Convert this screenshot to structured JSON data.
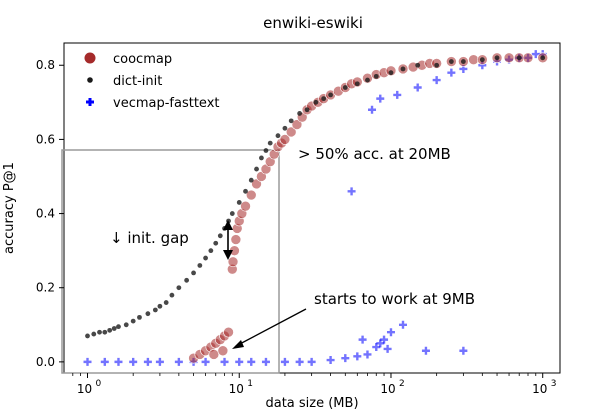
{
  "chart_data": {
    "type": "scatter",
    "title": "enwiki-eswiki",
    "xlabel": "data size (MB)",
    "ylabel": "accuracy P@1",
    "xscale": "log",
    "xlim": [
      0.7,
      1300
    ],
    "ylim": [
      -0.03,
      0.86
    ],
    "xticks": [
      {
        "value": 1,
        "label": "10",
        "exp": "0"
      },
      {
        "value": 10,
        "label": "10",
        "exp": "1"
      },
      {
        "value": 100,
        "label": "10",
        "exp": "2"
      },
      {
        "value": 1000,
        "label": "10",
        "exp": "3"
      }
    ],
    "yticks": [
      {
        "value": 0.0,
        "label": "0.0"
      },
      {
        "value": 0.2,
        "label": "0.2"
      },
      {
        "value": 0.4,
        "label": "0.4"
      },
      {
        "value": 0.6,
        "label": "0.6"
      },
      {
        "value": 0.8,
        "label": "0.8"
      }
    ],
    "legend_position": "top-left",
    "series": [
      {
        "name": "coocmap",
        "color": "#a52a2a",
        "marker": "circle",
        "points": [
          [
            5.0,
            0.01
          ],
          [
            5.5,
            0.02
          ],
          [
            6.0,
            0.03
          ],
          [
            6.5,
            0.04
          ],
          [
            7.0,
            0.05
          ],
          [
            7.5,
            0.06
          ],
          [
            8.0,
            0.07
          ],
          [
            8.5,
            0.08
          ],
          [
            6.8,
            0.02
          ],
          [
            7.8,
            0.03
          ],
          [
            9.0,
            0.25
          ],
          [
            9.1,
            0.27
          ],
          [
            9.3,
            0.3
          ],
          [
            9.5,
            0.33
          ],
          [
            9.7,
            0.36
          ],
          [
            10.0,
            0.38
          ],
          [
            10.4,
            0.4
          ],
          [
            11,
            0.42
          ],
          [
            12,
            0.45
          ],
          [
            13,
            0.48
          ],
          [
            14,
            0.5
          ],
          [
            15,
            0.52
          ],
          [
            16,
            0.54
          ],
          [
            17,
            0.56
          ],
          [
            18,
            0.58
          ],
          [
            19,
            0.59
          ],
          [
            20,
            0.6
          ],
          [
            22,
            0.62
          ],
          [
            24,
            0.64
          ],
          [
            26,
            0.66
          ],
          [
            28,
            0.68
          ],
          [
            30,
            0.69
          ],
          [
            33,
            0.7
          ],
          [
            36,
            0.71
          ],
          [
            40,
            0.72
          ],
          [
            45,
            0.73
          ],
          [
            50,
            0.74
          ],
          [
            55,
            0.75
          ],
          [
            60,
            0.755
          ],
          [
            70,
            0.765
          ],
          [
            80,
            0.775
          ],
          [
            90,
            0.78
          ],
          [
            100,
            0.785
          ],
          [
            120,
            0.79
          ],
          [
            140,
            0.795
          ],
          [
            160,
            0.8
          ],
          [
            180,
            0.805
          ],
          [
            200,
            0.805
          ],
          [
            250,
            0.81
          ],
          [
            300,
            0.81
          ],
          [
            350,
            0.815
          ],
          [
            400,
            0.815
          ],
          [
            500,
            0.82
          ],
          [
            600,
            0.82
          ],
          [
            700,
            0.82
          ],
          [
            800,
            0.82
          ],
          [
            1000,
            0.82
          ]
        ]
      },
      {
        "name": "dict-init",
        "color": "#1a1a1a",
        "marker": "dot",
        "points": [
          [
            1.0,
            0.07
          ],
          [
            1.1,
            0.075
          ],
          [
            1.2,
            0.08
          ],
          [
            1.3,
            0.08
          ],
          [
            1.4,
            0.085
          ],
          [
            1.5,
            0.09
          ],
          [
            1.6,
            0.095
          ],
          [
            1.8,
            0.1
          ],
          [
            2.0,
            0.11
          ],
          [
            2.2,
            0.12
          ],
          [
            2.5,
            0.13
          ],
          [
            2.8,
            0.14
          ],
          [
            3.0,
            0.15
          ],
          [
            3.3,
            0.16
          ],
          [
            3.6,
            0.18
          ],
          [
            4.0,
            0.2
          ],
          [
            4.5,
            0.22
          ],
          [
            5.0,
            0.24
          ],
          [
            5.5,
            0.26
          ],
          [
            6.0,
            0.28
          ],
          [
            6.5,
            0.3
          ],
          [
            7.0,
            0.32
          ],
          [
            7.5,
            0.34
          ],
          [
            8.0,
            0.36
          ],
          [
            8.5,
            0.38
          ],
          [
            9.0,
            0.4
          ],
          [
            10,
            0.43
          ],
          [
            11,
            0.46
          ],
          [
            12,
            0.49
          ],
          [
            13,
            0.52
          ],
          [
            14,
            0.55
          ],
          [
            15,
            0.57
          ],
          [
            16,
            0.59
          ],
          [
            18,
            0.61
          ],
          [
            20,
            0.63
          ],
          [
            22,
            0.65
          ],
          [
            25,
            0.67
          ],
          [
            28,
            0.68
          ],
          [
            32,
            0.7
          ],
          [
            36,
            0.71
          ],
          [
            40,
            0.72
          ],
          [
            50,
            0.74
          ],
          [
            60,
            0.75
          ],
          [
            70,
            0.76
          ],
          [
            80,
            0.77
          ],
          [
            100,
            0.78
          ],
          [
            120,
            0.79
          ],
          [
            150,
            0.8
          ],
          [
            200,
            0.8
          ],
          [
            250,
            0.81
          ],
          [
            300,
            0.81
          ],
          [
            400,
            0.815
          ],
          [
            500,
            0.82
          ],
          [
            700,
            0.82
          ],
          [
            1000,
            0.82
          ]
        ]
      },
      {
        "name": "vecmap-fasttext",
        "color": "#0000ff",
        "marker": "plus",
        "points": [
          [
            1.0,
            0.0
          ],
          [
            1.3,
            0.0
          ],
          [
            1.6,
            0.0
          ],
          [
            2.0,
            0.0
          ],
          [
            2.5,
            0.0
          ],
          [
            3.0,
            0.0
          ],
          [
            4.0,
            0.0
          ],
          [
            5.0,
            0.0
          ],
          [
            6.0,
            0.0
          ],
          [
            8.0,
            0.0
          ],
          [
            10,
            0.0
          ],
          [
            12,
            0.0
          ],
          [
            15,
            0.0
          ],
          [
            20,
            0.0
          ],
          [
            25,
            0.0
          ],
          [
            30,
            0.0
          ],
          [
            40,
            0.005
          ],
          [
            50,
            0.01
          ],
          [
            60,
            0.015
          ],
          [
            70,
            0.02
          ],
          [
            80,
            0.04
          ],
          [
            90,
            0.06
          ],
          [
            100,
            0.08
          ],
          [
            55,
            0.46
          ],
          [
            75,
            0.68
          ],
          [
            85,
            0.71
          ],
          [
            110,
            0.72
          ],
          [
            150,
            0.74
          ],
          [
            200,
            0.76
          ],
          [
            250,
            0.78
          ],
          [
            300,
            0.79
          ],
          [
            400,
            0.8
          ],
          [
            500,
            0.81
          ],
          [
            600,
            0.815
          ],
          [
            700,
            0.82
          ],
          [
            800,
            0.82
          ],
          [
            900,
            0.83
          ],
          [
            1000,
            0.83
          ],
          [
            170,
            0.03
          ],
          [
            300,
            0.03
          ],
          [
            120,
            0.1
          ],
          [
            95,
            0.035
          ],
          [
            65,
            0.06
          ],
          [
            85,
            0.05
          ]
        ]
      }
    ]
  },
  "annotations": {
    "pct50": "> 50% acc. at 20MB",
    "gap": "↓  init. gap",
    "starts": "starts to work at 9MB"
  }
}
